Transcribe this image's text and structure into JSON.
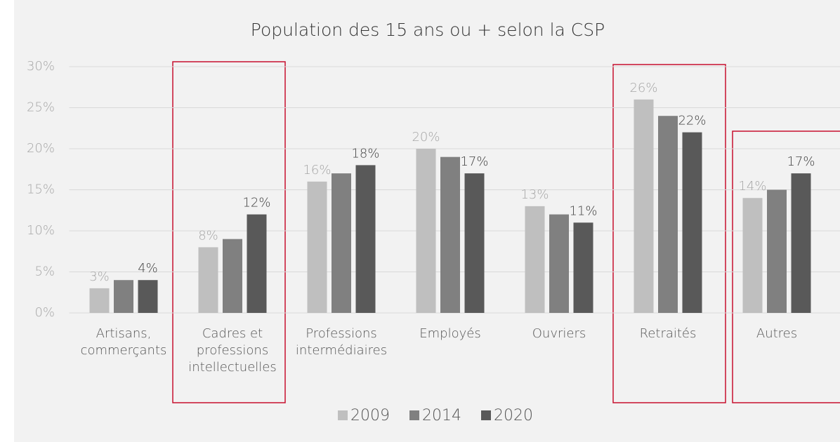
{
  "chart_data": {
    "type": "bar",
    "title": "Population des 15 ans ou + selon la CSP",
    "categories": [
      "Artisans, commerçants",
      "Cadres et professions intellectuelles",
      "Professions intermédiaires",
      "Employés",
      "Ouvriers",
      "Retraités",
      "Autres"
    ],
    "series": [
      {
        "name": "2009",
        "color": "#bfbfbf",
        "values": [
          3,
          8,
          16,
          20,
          13,
          26,
          14
        ],
        "value_labels": [
          "3%",
          "8%",
          "16%",
          "20%",
          "13%",
          "26%",
          "14%"
        ]
      },
      {
        "name": "2014",
        "color": "#808080",
        "values": [
          4,
          9,
          17,
          19,
          12,
          24,
          15
        ]
      },
      {
        "name": "2020",
        "color": "#595959",
        "values": [
          4,
          12,
          18,
          17,
          11,
          22,
          17
        ],
        "value_labels": [
          "4%",
          "12%",
          "18%",
          "17%",
          "11%",
          "22%",
          "17%"
        ]
      }
    ],
    "ylim": [
      0,
      30
    ],
    "yticks": [
      {
        "value": 0,
        "label": "0%"
      },
      {
        "value": 5,
        "label": "5%"
      },
      {
        "value": 10,
        "label": "10%"
      },
      {
        "value": 15,
        "label": "15%"
      },
      {
        "value": 20,
        "label": "20%"
      },
      {
        "value": 25,
        "label": "25%"
      },
      {
        "value": 30,
        "label": "30%"
      }
    ],
    "grid": true,
    "legend": "bottom"
  }
}
